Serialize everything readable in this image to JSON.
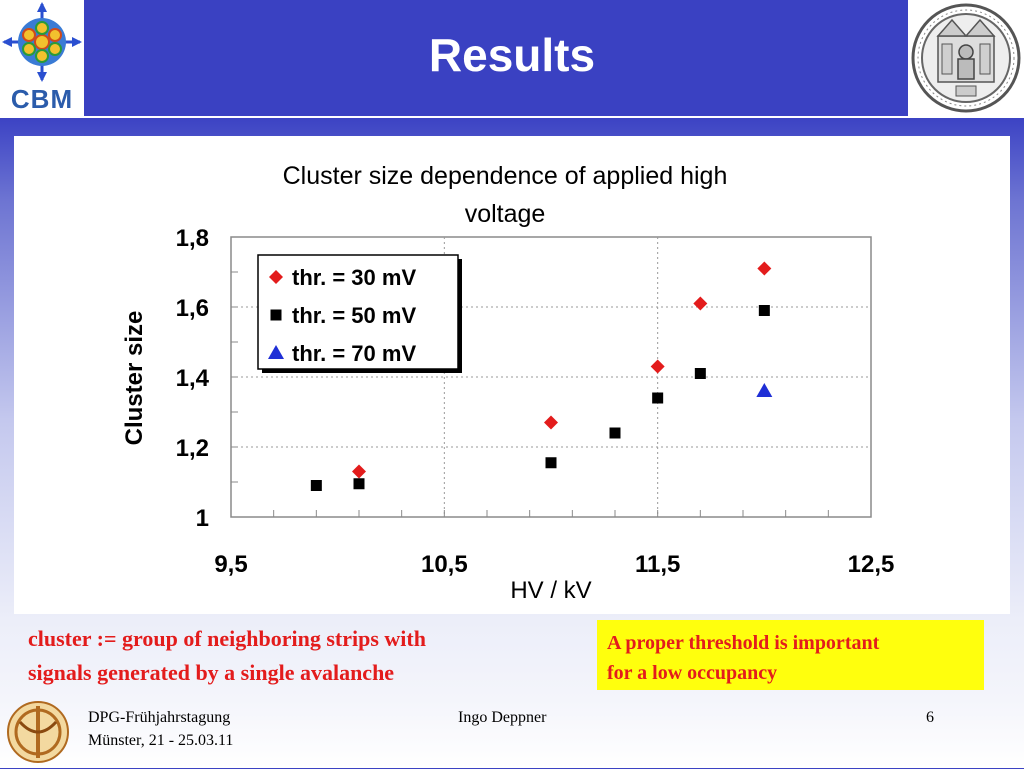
{
  "header": {
    "title": "Results",
    "logo_text": "CBM",
    "colors": {
      "bar": "#3a41c2",
      "title": "#ffffff"
    }
  },
  "chart_data": {
    "type": "scatter",
    "title": "Cluster size dependence of applied high voltage",
    "title_lines": [
      "Cluster size dependence of applied high",
      "voltage"
    ],
    "xlabel": "HV / kV",
    "ylabel": "Cluster size",
    "xlim": [
      9.5,
      12.5
    ],
    "ylim": [
      1.0,
      1.8
    ],
    "x_ticks": [
      "9,5",
      "10,5",
      "11,5",
      "12,5"
    ],
    "x_tick_values": [
      9.5,
      10.5,
      11.5,
      12.5
    ],
    "y_ticks": [
      "1",
      "1,2",
      "1,4",
      "1,6",
      "1,8"
    ],
    "y_tick_values": [
      1.0,
      1.2,
      1.4,
      1.6,
      1.8
    ],
    "grid": true,
    "legend_placement": "top-left",
    "series": [
      {
        "name": "thr. = 30 mV",
        "marker": "diamond",
        "color": "#e31c1c",
        "x": [
          10.1,
          11.0,
          11.5,
          11.7,
          12.0
        ],
        "y": [
          1.13,
          1.27,
          1.43,
          1.61,
          1.71
        ]
      },
      {
        "name": "thr. = 50 mV",
        "marker": "square",
        "color": "#000000",
        "x": [
          9.9,
          10.1,
          11.0,
          11.3,
          11.5,
          11.7,
          12.0
        ],
        "y": [
          1.09,
          1.095,
          1.155,
          1.24,
          1.34,
          1.41,
          1.59
        ]
      },
      {
        "name": "thr. = 70 mV",
        "marker": "triangle",
        "color": "#1f2fd6",
        "x": [
          12.0
        ],
        "y": [
          1.36
        ]
      }
    ]
  },
  "definition": {
    "line1": "cluster := group of neighboring strips with",
    "line2": "signals generated by a single avalanche",
    "color": "#e31c1c"
  },
  "note": {
    "line1": "A proper threshold is important",
    "line2": "for a low occupancy",
    "background": "#ffff0d",
    "color": "#e31c1c"
  },
  "footer": {
    "conference_line1": "DPG-Frühjahrstagung",
    "conference_line2": "Münster, 21 - 25.03.11",
    "author": "Ingo Deppner",
    "page": "6"
  }
}
